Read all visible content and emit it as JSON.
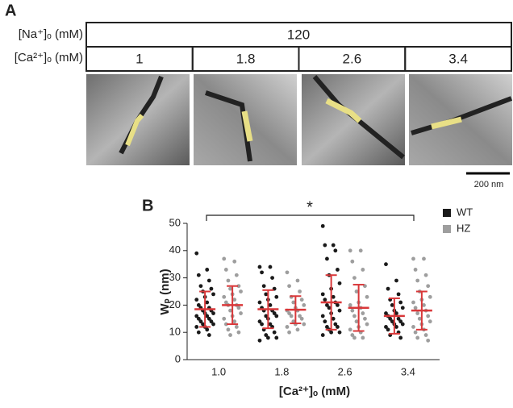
{
  "panel_a": {
    "label": "A",
    "row_labels": [
      "[Na⁺]ₒ (mM)",
      "[Ca²⁺]ₒ (mM)"
    ],
    "na_value": "120",
    "ca_values": [
      "1",
      "1.8",
      "2.6",
      "3.4"
    ],
    "scale_bar": "200 nm"
  },
  "chart_data": {
    "type": "dot",
    "label": "B",
    "annotation": "*",
    "y_label": "Wₚ (nm)",
    "x_label": "[Ca²⁺]ₒ (mM)",
    "categories": [
      "1.0",
      "1.8",
      "2.6",
      "3.4"
    ],
    "ylim": [
      0,
      50
    ],
    "yticks": [
      0,
      10,
      20,
      30,
      40,
      50
    ],
    "summary_color": "#d9383a",
    "series": [
      {
        "name": "WT",
        "color": "#1a1a1a",
        "points": [
          [
            39,
            33,
            31,
            29,
            27,
            26,
            25,
            24,
            23,
            22,
            21,
            20,
            19,
            19,
            18,
            18,
            17,
            17,
            16,
            16,
            15,
            15,
            14,
            14,
            13,
            13,
            12,
            12,
            11,
            10,
            9
          ],
          [
            34,
            34,
            32,
            30,
            27,
            26,
            24,
            23,
            22,
            21,
            20,
            19,
            18,
            18,
            17,
            16,
            16,
            15,
            14,
            13,
            13,
            12,
            11,
            10,
            9,
            8,
            8,
            7
          ],
          [
            49,
            42,
            42,
            40,
            37,
            33,
            31,
            28,
            26,
            24,
            23,
            22,
            21,
            20,
            20,
            19,
            18,
            17,
            16,
            15,
            14,
            13,
            12,
            12,
            11,
            10,
            10,
            9
          ],
          [
            35,
            29,
            26,
            24,
            22,
            21,
            20,
            19,
            18,
            17,
            17,
            16,
            15,
            15,
            14,
            14,
            13,
            13,
            12,
            12,
            11,
            10,
            9,
            8
          ]
        ],
        "mean": [
          18.5,
          18.5,
          21,
          16
        ],
        "sd": [
          6.5,
          7,
          10,
          6.5
        ]
      },
      {
        "name": "HZ",
        "color": "#9e9e9e",
        "points": [
          [
            37,
            36,
            33,
            31,
            29,
            27,
            26,
            25,
            24,
            23,
            22,
            21,
            20,
            20,
            19,
            18,
            17,
            16,
            15,
            14,
            13,
            12,
            11,
            10,
            9
          ],
          [
            32,
            29,
            27,
            25,
            23,
            22,
            21,
            20,
            19,
            18,
            18,
            17,
            16,
            16,
            15,
            14,
            13,
            13,
            12,
            11,
            10
          ],
          [
            40,
            40,
            36,
            33,
            30,
            27,
            25,
            23,
            21,
            20,
            19,
            18,
            17,
            16,
            15,
            14,
            13,
            12,
            11,
            10,
            9,
            8,
            8
          ],
          [
            37,
            37,
            33,
            31,
            29,
            27,
            25,
            23,
            22,
            21,
            20,
            19,
            18,
            17,
            16,
            15,
            14,
            13,
            12,
            11,
            10,
            9,
            8,
            7
          ]
        ],
        "mean": [
          20,
          18.3,
          19,
          18
        ],
        "sd": [
          7,
          5,
          8.5,
          7
        ]
      }
    ]
  }
}
